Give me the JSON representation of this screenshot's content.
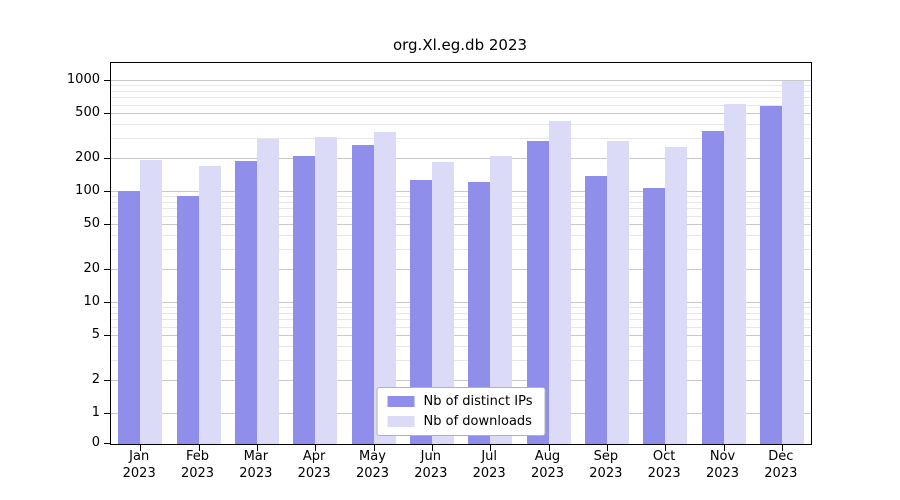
{
  "title": "org.Xl.eg.db 2023",
  "chart_data": {
    "type": "bar",
    "title": "org.Xl.eg.db 2023",
    "categories": [
      "Jan",
      "Feb",
      "Mar",
      "Apr",
      "May",
      "Jun",
      "Jul",
      "Aug",
      "Sep",
      "Oct",
      "Nov",
      "Dec"
    ],
    "year": "2023",
    "series": [
      {
        "name": "Nb of distinct IPs",
        "color": "#8f8feb",
        "values": [
          103,
          93,
          190,
          210,
          265,
          128,
          122,
          290,
          138,
          108,
          355,
          600
        ]
      },
      {
        "name": "Nb of downloads",
        "color": "#dbdbf8",
        "values": [
          195,
          172,
          300,
          310,
          350,
          185,
          212,
          440,
          288,
          252,
          620,
          1000
        ]
      }
    ],
    "yticks": [
      0,
      1,
      2,
      5,
      10,
      20,
      50,
      100,
      200,
      500,
      1000
    ],
    "yscale": "symlog",
    "ylim": [
      0,
      1000
    ],
    "grid": true,
    "minor_gridlines": [
      3,
      4,
      6,
      7,
      8,
      9,
      30,
      40,
      60,
      70,
      80,
      90,
      300,
      400,
      600,
      700,
      800,
      900
    ],
    "legend_position": "lower center"
  }
}
